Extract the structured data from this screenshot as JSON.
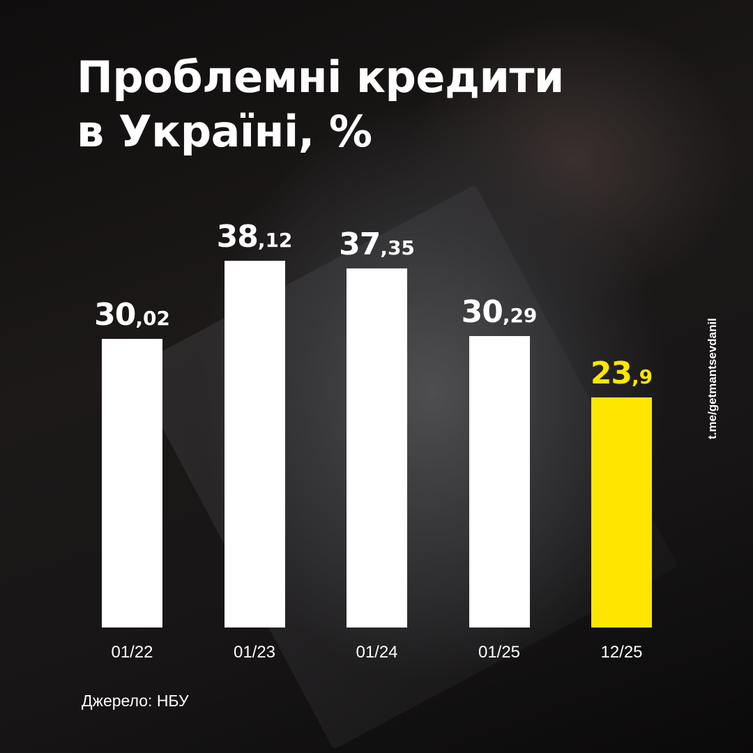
{
  "title": {
    "line1": "Проблемні кредити",
    "line2": "в Україні, %"
  },
  "bars": [
    {
      "label": "01/22",
      "int": "30",
      "dec": ",02",
      "value": 30.02,
      "highlight": false
    },
    {
      "label": "01/23",
      "int": "38",
      "dec": ",12",
      "value": 38.12,
      "highlight": false
    },
    {
      "label": "01/24",
      "int": "37",
      "dec": ",35",
      "value": 37.35,
      "highlight": false
    },
    {
      "label": "01/25",
      "int": "30",
      "dec": ",29",
      "value": 30.29,
      "highlight": false
    },
    {
      "label": "12/25",
      "int": "23",
      "dec": ",9",
      "value": 23.9,
      "highlight": true
    }
  ],
  "source": "Джерело: НБУ",
  "watermark": "t.me/getmantsevdanil",
  "colors": {
    "bar": "#FFFFFF",
    "highlight": "#FFE600",
    "background": "#1a1817"
  },
  "chart_data": {
    "type": "bar",
    "title": "Проблемні кредити в Україні, %",
    "categories": [
      "01/22",
      "01/23",
      "01/24",
      "01/25",
      "12/25"
    ],
    "values": [
      30.02,
      38.12,
      37.35,
      30.29,
      23.9
    ],
    "xlabel": "",
    "ylabel": "%",
    "highlighted_category": "12/25",
    "grid": false,
    "legend": null,
    "source": "Джерело: НБУ"
  }
}
